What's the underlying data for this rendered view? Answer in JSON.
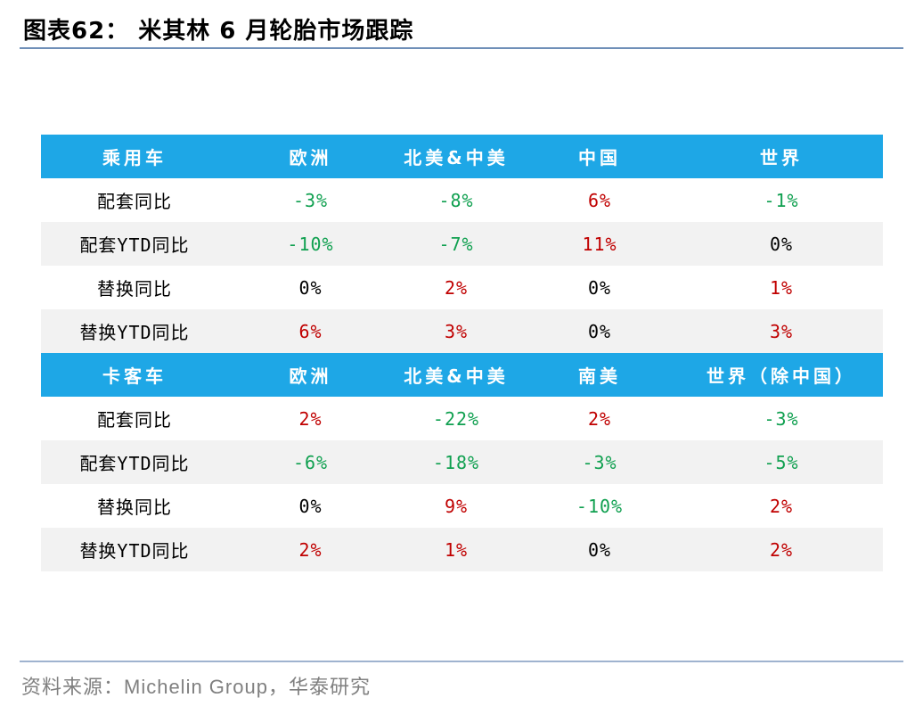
{
  "title": "图表62：  米其林 6 月轮胎市场跟踪",
  "source": "资料来源：Michelin Group，华泰研究",
  "colors": {
    "header_bg": "#1ea7e6",
    "negative": "#10a050",
    "positive": "#c00000",
    "rule": "#6f8fb8"
  },
  "passenger": {
    "headers": [
      "乘用车",
      "欧洲",
      "北美&中美",
      "中国",
      "世界"
    ],
    "rows": [
      {
        "label": "配套同比",
        "values": [
          "-3%",
          "-8%",
          "6%",
          "-1%"
        ]
      },
      {
        "label": "配套YTD同比",
        "values": [
          "-10%",
          "-7%",
          "11%",
          "0%"
        ]
      },
      {
        "label": "替换同比",
        "values": [
          "0%",
          "2%",
          "0%",
          "1%"
        ]
      },
      {
        "label": "替换YTD同比",
        "values": [
          "6%",
          "3%",
          "0%",
          "3%"
        ]
      }
    ]
  },
  "truck": {
    "headers": [
      "卡客车",
      "欧洲",
      "北美&中美",
      "南美",
      "世界（除中国）"
    ],
    "rows": [
      {
        "label": "配套同比",
        "values": [
          "2%",
          "-22%",
          "2%",
          "-3%"
        ]
      },
      {
        "label": "配套YTD同比",
        "values": [
          "-6%",
          "-18%",
          "-3%",
          "-5%"
        ]
      },
      {
        "label": "替换同比",
        "values": [
          "0%",
          "9%",
          "-10%",
          "2%"
        ]
      },
      {
        "label": "替换YTD同比",
        "values": [
          "2%",
          "1%",
          "0%",
          "2%"
        ]
      }
    ]
  }
}
